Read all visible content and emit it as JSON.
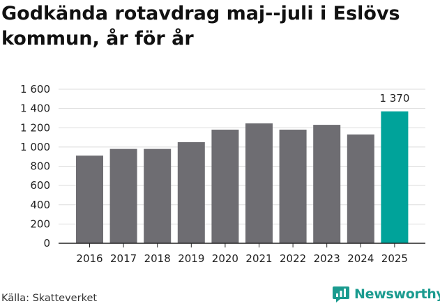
{
  "chart_data": {
    "type": "bar",
    "title": "Godkända rotavdrag maj--juli i Eslövs kommun, år för år",
    "categories": [
      "2016",
      "2017",
      "2018",
      "2019",
      "2020",
      "2021",
      "2022",
      "2023",
      "2024",
      "2025"
    ],
    "values": [
      910,
      980,
      980,
      1050,
      1180,
      1245,
      1180,
      1230,
      1130,
      1370
    ],
    "highlight_label": "1 370",
    "y_ticks": [
      "0",
      "200",
      "400",
      "600",
      "800",
      "1 000",
      "1 200",
      "1 400",
      "1 600"
    ],
    "ylim": [
      0,
      1600
    ],
    "xlabel": "",
    "ylabel": "",
    "grid": true,
    "colors": {
      "bar": "#6e6d72",
      "highlight": "#00a39a",
      "grid": "#dddddd",
      "axis": "#222222"
    }
  },
  "footer": {
    "source": "Källa: Skatteverket",
    "brand": "Newsworthy",
    "brand_icon": "newsworthy-logo-icon",
    "brand_color": "#1a9b8f"
  }
}
